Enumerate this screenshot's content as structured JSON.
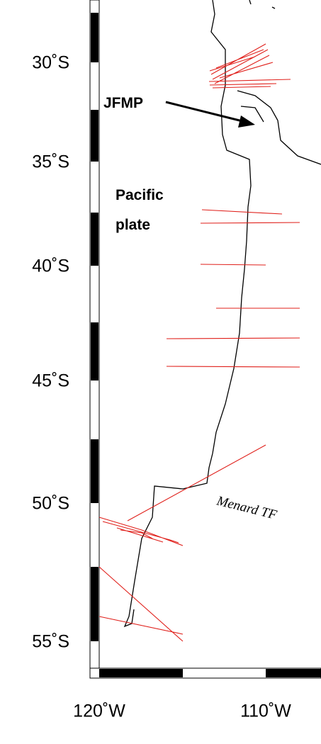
{
  "map": {
    "lat_labels": [
      "30˚S",
      "35˚S",
      "40˚S",
      "45˚S",
      "50˚S",
      "55˚S"
    ],
    "lon_labels": [
      "120˚W",
      "110˚W"
    ],
    "annotations": {
      "jfmp": "JFMP",
      "pacific": "Pacific",
      "plate": "plate",
      "menard": "Menard TF"
    }
  }
}
